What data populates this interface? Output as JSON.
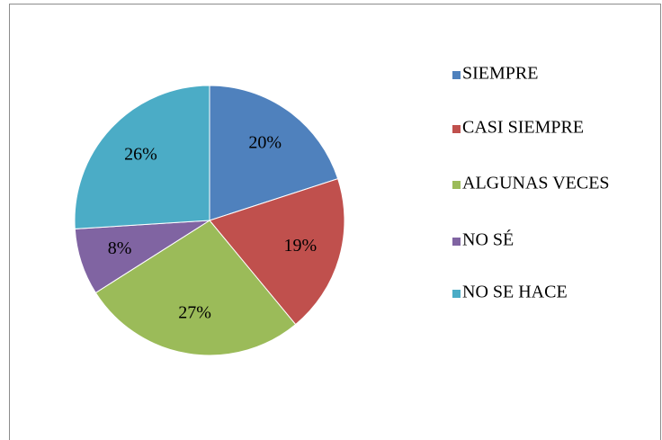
{
  "chart_data": {
    "type": "pie",
    "categories": [
      "SIEMPRE",
      "CASI SIEMPRE",
      "ALGUNAS VECES",
      "NO SÉ",
      "NO SE HACE"
    ],
    "values": [
      20,
      19,
      27,
      8,
      26
    ],
    "value_labels": [
      "20%",
      "19%",
      "27%",
      "8%",
      "26%"
    ],
    "colors": [
      "#4f81bd",
      "#c0504d",
      "#9bbb59",
      "#8064a2",
      "#4bacc6"
    ],
    "legend": "right"
  }
}
